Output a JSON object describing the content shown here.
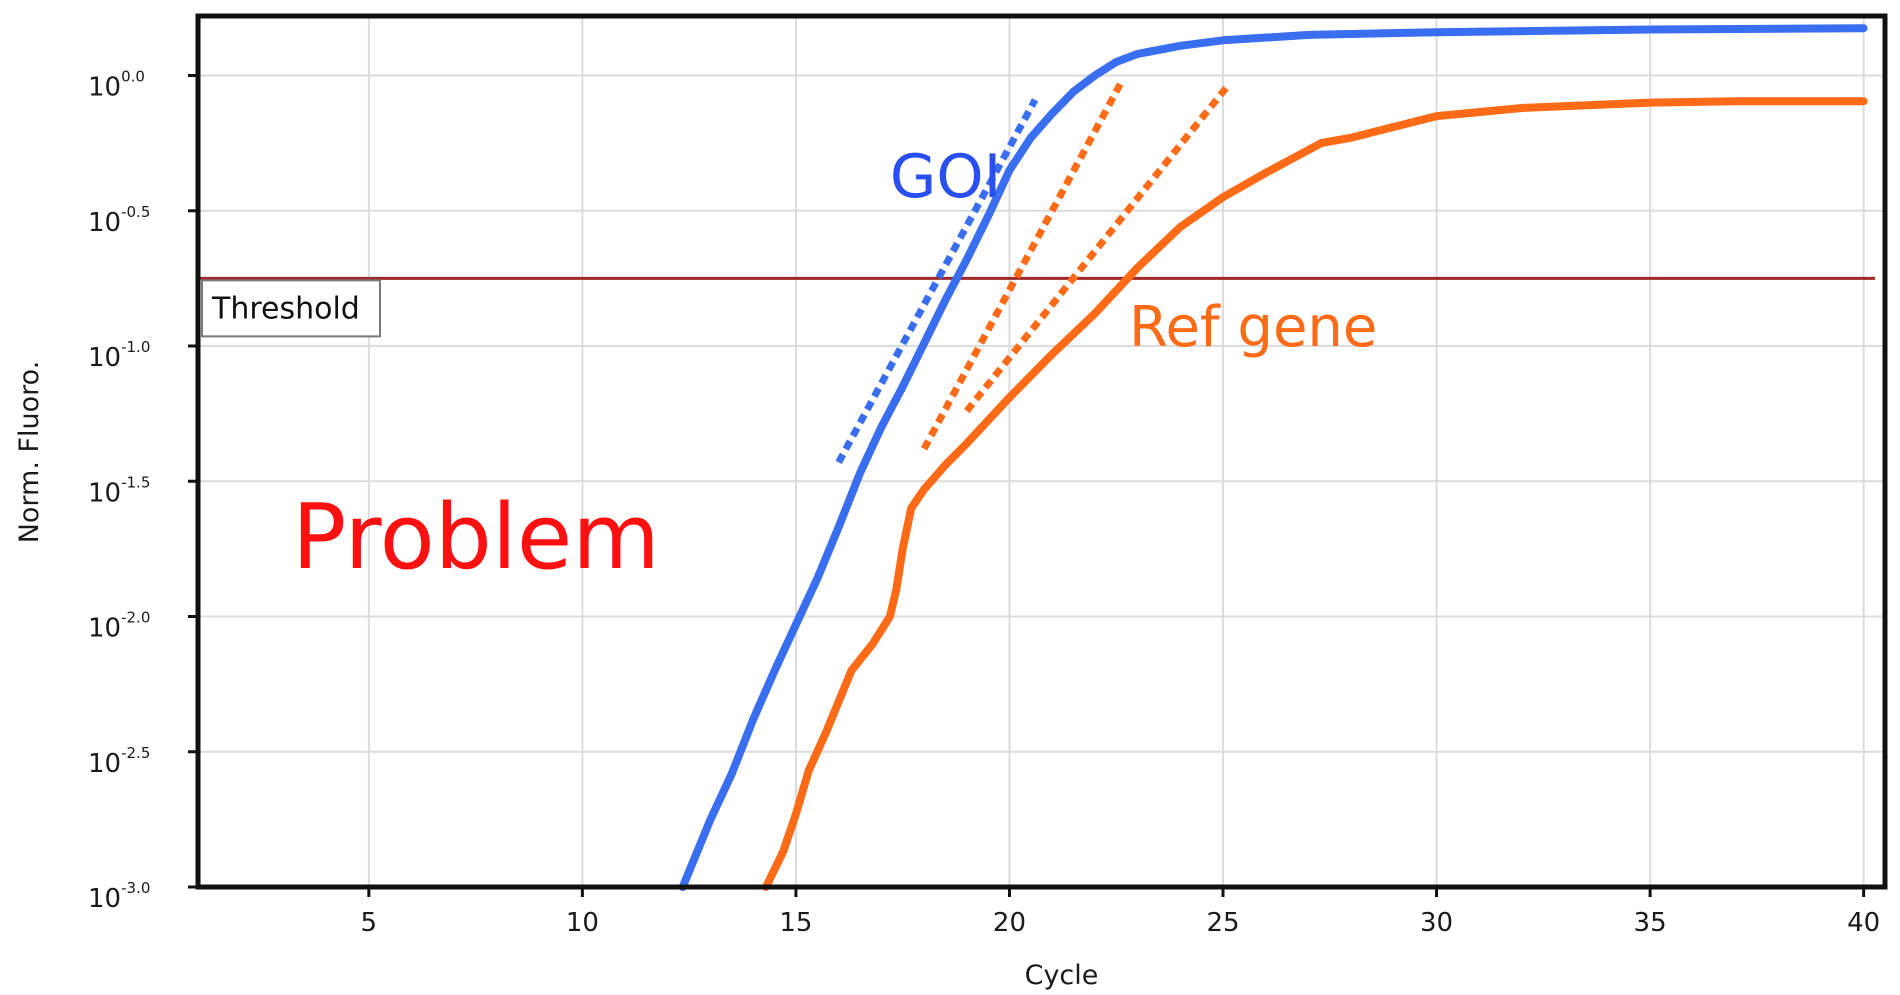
{
  "chart_data": {
    "type": "line",
    "title": "",
    "xlabel": "Cycle",
    "ylabel": "Norm. Fluoro.",
    "xlim": [
      1,
      40.5
    ],
    "ylim_log10": [
      -3.0,
      0.22
    ],
    "y_scale": "log",
    "grid": true,
    "x_ticks": [
      "5",
      "10",
      "15",
      "20",
      "25",
      "30",
      "35",
      "40"
    ],
    "x_tick_values": [
      5,
      10,
      15,
      20,
      25,
      30,
      35,
      40
    ],
    "y_ticks": [
      {
        "base": "10",
        "exp": "0.0",
        "value": 0.0
      },
      {
        "base": "10",
        "exp": "-0.5",
        "value": -0.5
      },
      {
        "base": "10",
        "exp": "-1.0",
        "value": -1.0
      },
      {
        "base": "10",
        "exp": "-1.5",
        "value": -1.5
      },
      {
        "base": "10",
        "exp": "-2.0",
        "value": -2.0
      },
      {
        "base": "10",
        "exp": "-2.5",
        "value": -2.5
      },
      {
        "base": "10",
        "exp": "-3.0",
        "value": -3.0
      }
    ],
    "threshold": {
      "label": "Threshold",
      "log10_value": -0.75,
      "color": "#a02828"
    },
    "series": [
      {
        "name": "GOI",
        "color": "#3a6ef0",
        "log10_points": [
          [
            12.35,
            -3.0
          ],
          [
            13.0,
            -2.75
          ],
          [
            13.5,
            -2.58
          ],
          [
            14.0,
            -2.38
          ],
          [
            14.5,
            -2.2
          ],
          [
            15.0,
            -2.03
          ],
          [
            15.5,
            -1.86
          ],
          [
            16.0,
            -1.67
          ],
          [
            16.5,
            -1.47
          ],
          [
            17.0,
            -1.3
          ],
          [
            17.5,
            -1.15
          ],
          [
            18.0,
            -0.99
          ],
          [
            18.5,
            -0.83
          ],
          [
            19.0,
            -0.68
          ],
          [
            19.5,
            -0.52
          ],
          [
            20.0,
            -0.35
          ],
          [
            20.5,
            -0.23
          ],
          [
            21.0,
            -0.14
          ],
          [
            21.5,
            -0.06
          ],
          [
            22.0,
            0.0
          ],
          [
            22.5,
            0.05
          ],
          [
            23.0,
            0.08
          ],
          [
            24.0,
            0.11
          ],
          [
            25.0,
            0.13
          ],
          [
            27.0,
            0.15
          ],
          [
            30.0,
            0.16
          ],
          [
            35.0,
            0.17
          ],
          [
            40.0,
            0.175
          ]
        ]
      },
      {
        "name": "Ref gene",
        "color": "#ff6a17",
        "log10_points": [
          [
            14.3,
            -3.0
          ],
          [
            14.7,
            -2.87
          ],
          [
            15.0,
            -2.73
          ],
          [
            15.3,
            -2.57
          ],
          [
            15.7,
            -2.43
          ],
          [
            16.3,
            -2.2
          ],
          [
            16.8,
            -2.1
          ],
          [
            17.2,
            -2.0
          ],
          [
            17.35,
            -1.9
          ],
          [
            17.5,
            -1.75
          ],
          [
            17.7,
            -1.6
          ],
          [
            18.0,
            -1.53
          ],
          [
            18.5,
            -1.44
          ],
          [
            19.0,
            -1.36
          ],
          [
            20.0,
            -1.19
          ],
          [
            21.0,
            -1.03
          ],
          [
            22.0,
            -0.88
          ],
          [
            23.0,
            -0.71
          ],
          [
            24.0,
            -0.56
          ],
          [
            25.0,
            -0.45
          ],
          [
            26.0,
            -0.36
          ],
          [
            27.3,
            -0.25
          ],
          [
            28.0,
            -0.23
          ],
          [
            29.0,
            -0.19
          ],
          [
            30.0,
            -0.15
          ],
          [
            32.0,
            -0.12
          ],
          [
            35.0,
            -0.1
          ],
          [
            37.0,
            -0.095
          ],
          [
            40.0,
            -0.095
          ]
        ]
      }
    ],
    "slope_guides": [
      {
        "color": "#3a6ef0",
        "from": [
          16.0,
          -1.43
        ],
        "to": [
          20.6,
          -0.09
        ]
      },
      {
        "color": "#ff6a17",
        "from": [
          18.0,
          -1.38
        ],
        "to": [
          22.6,
          -0.03
        ]
      },
      {
        "color": "#ff6a17",
        "from": [
          19.0,
          -1.24
        ],
        "to": [
          25.1,
          -0.04
        ]
      }
    ],
    "annotations": [
      {
        "id": "goi",
        "text": "GOI",
        "color": "#2a4ff0",
        "x": 17.2,
        "y": -0.45
      },
      {
        "id": "ref",
        "text": "Ref gene",
        "color": "#ff6a17",
        "x": 22.8,
        "y": -1.0
      },
      {
        "id": "problem",
        "text": "Problem",
        "color": "#ff1010",
        "x": 3.2,
        "y": -1.82
      }
    ]
  }
}
